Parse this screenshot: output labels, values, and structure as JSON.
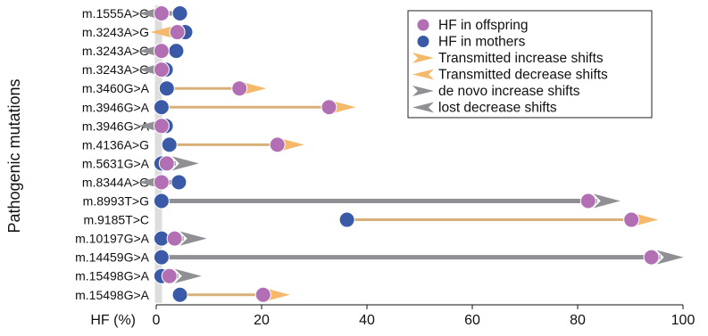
{
  "chart_data": {
    "type": "scatter",
    "title": "",
    "xlabel": "HF (%)",
    "ylabel": "Pathogenic mutations",
    "xlim": [
      0,
      100
    ],
    "x_ticks": [
      "0",
      "20",
      "40",
      "60",
      "80",
      "100"
    ],
    "grid": false,
    "legend_position": "top-right",
    "legend": [
      {
        "key": "offspring",
        "label": "HF in offspring",
        "marker": "circle"
      },
      {
        "key": "mothers",
        "label": "HF in mothers",
        "marker": "circle"
      },
      {
        "key": "transmitted_increase",
        "label": "Transmitted increase shifts",
        "marker": "arrow-right"
      },
      {
        "key": "transmitted_decrease",
        "label": "Transmitted decrease shifts",
        "marker": "arrow-left"
      },
      {
        "key": "denovo_increase",
        "label": "de novo increase shifts",
        "marker": "arrow-right"
      },
      {
        "key": "lost_decrease",
        "label": "lost decrease shifts",
        "marker": "arrow-left"
      }
    ],
    "colors": {
      "offspring": "#b36fb3",
      "mothers": "#3a5aa8",
      "transmitted": "#d9b07a",
      "transmitted_arrow": "#f5b96b",
      "shift": "#8f8f94",
      "zero_band": "#dddddd"
    },
    "rows": [
      {
        "label": "m.1555A>G",
        "mother": 4.5,
        "offspring": 1.0,
        "shift": "lost_decrease"
      },
      {
        "label": "m.3243A>G",
        "mother": 5.5,
        "offspring": 4.0,
        "shift": "transmitted_decrease"
      },
      {
        "label": "m.3243A>G",
        "mother": 3.8,
        "offspring": 1.0,
        "shift": "lost_decrease"
      },
      {
        "label": "m.3243A>G",
        "mother": 1.8,
        "offspring": 1.0,
        "shift": "lost_decrease"
      },
      {
        "label": "m.3460G>A",
        "mother": 2.0,
        "offspring": 15.8,
        "shift": "transmitted_increase"
      },
      {
        "label": "m.3946G>A",
        "mother": 1.0,
        "offspring": 32.8,
        "shift": "transmitted_increase"
      },
      {
        "label": "m.3946G>A",
        "mother": 1.8,
        "offspring": 1.0,
        "shift": "lost_decrease"
      },
      {
        "label": "m.4136A>G",
        "mother": 2.5,
        "offspring": 23.0,
        "shift": "transmitted_increase"
      },
      {
        "label": "m.5631G>A",
        "mother": 1.0,
        "offspring": 2.0,
        "shift": "denovo_increase"
      },
      {
        "label": "m.8344A>G",
        "mother": 4.3,
        "offspring": 1.0,
        "shift": "lost_decrease"
      },
      {
        "label": "m.8993T>G",
        "mother": 1.0,
        "offspring": 82.0,
        "shift": "denovo_increase"
      },
      {
        "label": "m.9185T>C",
        "mother": 36.2,
        "offspring": 90.2,
        "shift": "transmitted_increase"
      },
      {
        "label": "m.10197G>A",
        "mother": 1.0,
        "offspring": 3.5,
        "shift": "denovo_increase"
      },
      {
        "label": "m.14459G>A",
        "mother": 1.0,
        "offspring": 94.0,
        "shift": "denovo_increase"
      },
      {
        "label": "m.15498G>A",
        "mother": 1.0,
        "offspring": 2.5,
        "shift": "denovo_increase"
      },
      {
        "label": "m.15498G>A",
        "mother": 4.5,
        "offspring": 20.3,
        "shift": "transmitted_increase"
      }
    ]
  }
}
